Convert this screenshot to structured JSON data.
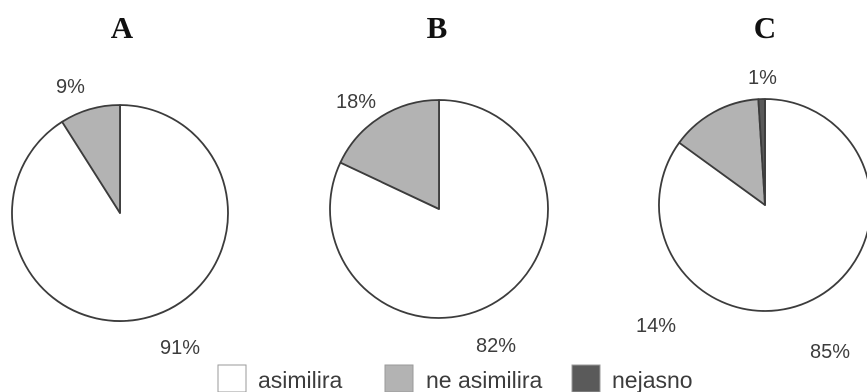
{
  "chart_data": [
    {
      "type": "pie",
      "title": "A",
      "slices": [
        {
          "category": "asimilira",
          "value": 91,
          "label": "91%"
        },
        {
          "category": "ne asimilira",
          "value": 9,
          "label": "9%"
        }
      ]
    },
    {
      "type": "pie",
      "title": "B",
      "slices": [
        {
          "category": "asimilira",
          "value": 82,
          "label": "82%"
        },
        {
          "category": "ne asimilira",
          "value": 18,
          "label": "18%"
        }
      ]
    },
    {
      "type": "pie",
      "title": "C",
      "slices": [
        {
          "category": "asimilira",
          "value": 85,
          "label": "85%"
        },
        {
          "category": "ne asimilira",
          "value": 14,
          "label": "14%"
        },
        {
          "category": "nejasno",
          "value": 1,
          "label": "1%"
        }
      ]
    }
  ],
  "legend": [
    {
      "label": "asimilira",
      "color": "#ffffff"
    },
    {
      "label": "ne asimilira",
      "color": "#b3b3b3"
    },
    {
      "label": "nejasno",
      "color": "#5a5a5a"
    }
  ],
  "colors": {
    "outline": "#3c3c3c"
  }
}
